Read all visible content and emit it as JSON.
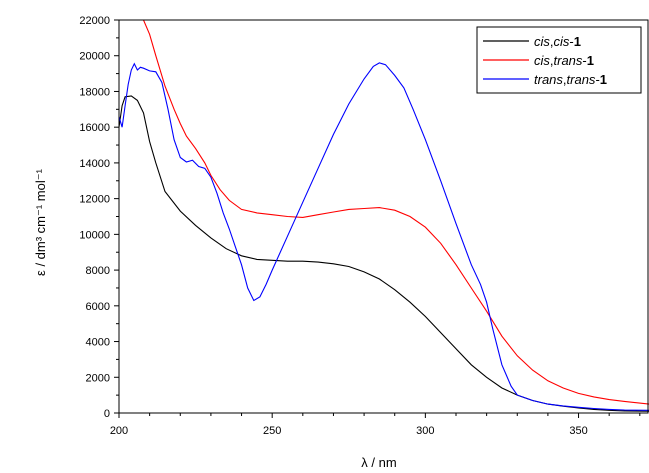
{
  "chart_data": {
    "type": "line",
    "xlabel": "λ / nm",
    "ylabel": "ε / dm³ cm⁻¹ mol⁻¹",
    "xlim": [
      200,
      373
    ],
    "ylim": [
      0,
      22000
    ],
    "x_ticks": [
      200,
      250,
      300,
      350
    ],
    "x_minor_step": 10,
    "y_ticks": [
      0,
      2000,
      4000,
      6000,
      8000,
      10000,
      12000,
      14000,
      16000,
      18000,
      20000,
      22000
    ],
    "grid": false,
    "legend_position": "top-right",
    "series": [
      {
        "name": "cis,cis-1",
        "name_parts": [
          {
            "t": "cis",
            "s": "it"
          },
          {
            "t": ",",
            "s": ""
          },
          {
            "t": "cis",
            "s": "it"
          },
          {
            "t": "-",
            "s": ""
          },
          {
            "t": "1",
            "s": "bd"
          }
        ],
        "color": "#000000",
        "points": [
          [
            200,
            16000
          ],
          [
            201,
            17200
          ],
          [
            202,
            17700
          ],
          [
            204,
            17750
          ],
          [
            206,
            17500
          ],
          [
            208,
            16800
          ],
          [
            210,
            15200
          ],
          [
            212,
            14000
          ],
          [
            215,
            12400
          ],
          [
            220,
            11300
          ],
          [
            225,
            10500
          ],
          [
            230,
            9800
          ],
          [
            235,
            9200
          ],
          [
            240,
            8800
          ],
          [
            245,
            8600
          ],
          [
            250,
            8550
          ],
          [
            255,
            8500
          ],
          [
            260,
            8500
          ],
          [
            265,
            8450
          ],
          [
            270,
            8350
          ],
          [
            275,
            8200
          ],
          [
            280,
            7900
          ],
          [
            285,
            7500
          ],
          [
            290,
            6900
          ],
          [
            295,
            6200
          ],
          [
            300,
            5400
          ],
          [
            305,
            4500
          ],
          [
            310,
            3600
          ],
          [
            315,
            2700
          ],
          [
            320,
            2000
          ],
          [
            325,
            1400
          ],
          [
            330,
            1000
          ],
          [
            335,
            700
          ],
          [
            340,
            500
          ],
          [
            345,
            380
          ],
          [
            350,
            280
          ],
          [
            355,
            200
          ],
          [
            360,
            150
          ],
          [
            365,
            120
          ],
          [
            373,
            100
          ]
        ]
      },
      {
        "name": "cis,trans-1",
        "name_parts": [
          {
            "t": "cis",
            "s": "it"
          },
          {
            "t": ",",
            "s": ""
          },
          {
            "t": "trans",
            "s": "it"
          },
          {
            "t": "-",
            "s": ""
          },
          {
            "t": "1",
            "s": "bd"
          }
        ],
        "color": "#ff0000",
        "points": [
          [
            208,
            22000
          ],
          [
            210,
            21200
          ],
          [
            212,
            20000
          ],
          [
            215,
            18300
          ],
          [
            218,
            17000
          ],
          [
            220,
            16200
          ],
          [
            222,
            15500
          ],
          [
            225,
            14800
          ],
          [
            228,
            14000
          ],
          [
            230,
            13300
          ],
          [
            233,
            12500
          ],
          [
            236,
            11900
          ],
          [
            240,
            11400
          ],
          [
            245,
            11200
          ],
          [
            250,
            11100
          ],
          [
            255,
            11000
          ],
          [
            260,
            10950
          ],
          [
            265,
            11100
          ],
          [
            270,
            11250
          ],
          [
            275,
            11400
          ],
          [
            280,
            11450
          ],
          [
            285,
            11500
          ],
          [
            290,
            11350
          ],
          [
            295,
            11000
          ],
          [
            300,
            10400
          ],
          [
            305,
            9500
          ],
          [
            310,
            8300
          ],
          [
            315,
            7000
          ],
          [
            320,
            5700
          ],
          [
            325,
            4300
          ],
          [
            330,
            3200
          ],
          [
            335,
            2400
          ],
          [
            340,
            1800
          ],
          [
            345,
            1400
          ],
          [
            350,
            1100
          ],
          [
            355,
            900
          ],
          [
            360,
            750
          ],
          [
            365,
            650
          ],
          [
            373,
            500
          ]
        ]
      },
      {
        "name": "trans,trans-1",
        "name_parts": [
          {
            "t": "trans",
            "s": "it"
          },
          {
            "t": ",",
            "s": ""
          },
          {
            "t": "trans",
            "s": "it"
          },
          {
            "t": "-",
            "s": ""
          },
          {
            "t": "1",
            "s": "bd"
          }
        ],
        "color": "#0000ff",
        "points": [
          [
            200,
            16600
          ],
          [
            201,
            16000
          ],
          [
            202,
            17200
          ],
          [
            203,
            18400
          ],
          [
            204,
            19200
          ],
          [
            205,
            19550
          ],
          [
            206,
            19200
          ],
          [
            207,
            19350
          ],
          [
            208,
            19300
          ],
          [
            210,
            19150
          ],
          [
            212,
            19100
          ],
          [
            214,
            18500
          ],
          [
            216,
            17000
          ],
          [
            218,
            15300
          ],
          [
            220,
            14300
          ],
          [
            222,
            14050
          ],
          [
            224,
            14150
          ],
          [
            226,
            13800
          ],
          [
            228,
            13700
          ],
          [
            230,
            13200
          ],
          [
            232,
            12300
          ],
          [
            234,
            11200
          ],
          [
            236,
            10300
          ],
          [
            238,
            9300
          ],
          [
            240,
            8300
          ],
          [
            242,
            7000
          ],
          [
            244,
            6300
          ],
          [
            246,
            6500
          ],
          [
            248,
            7200
          ],
          [
            250,
            8000
          ],
          [
            255,
            9900
          ],
          [
            260,
            11800
          ],
          [
            265,
            13700
          ],
          [
            270,
            15600
          ],
          [
            275,
            17300
          ],
          [
            280,
            18700
          ],
          [
            283,
            19400
          ],
          [
            285,
            19600
          ],
          [
            287,
            19500
          ],
          [
            290,
            18900
          ],
          [
            293,
            18200
          ],
          [
            296,
            17000
          ],
          [
            300,
            15300
          ],
          [
            305,
            13000
          ],
          [
            310,
            10600
          ],
          [
            315,
            8300
          ],
          [
            318,
            7200
          ],
          [
            320,
            6200
          ],
          [
            322,
            4700
          ],
          [
            325,
            2700
          ],
          [
            328,
            1500
          ],
          [
            330,
            1000
          ],
          [
            335,
            700
          ],
          [
            340,
            500
          ],
          [
            345,
            400
          ],
          [
            350,
            320
          ],
          [
            355,
            250
          ],
          [
            360,
            200
          ],
          [
            365,
            170
          ],
          [
            373,
            150
          ]
        ]
      }
    ]
  }
}
